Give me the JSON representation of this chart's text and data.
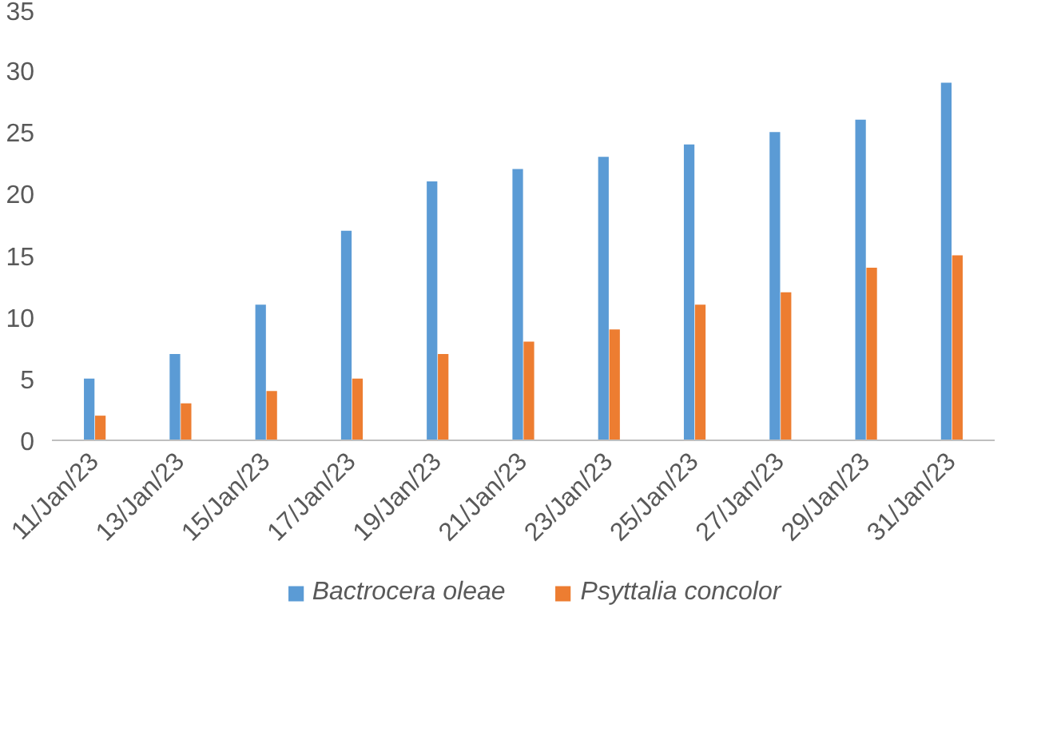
{
  "chart_data": {
    "type": "bar",
    "categories": [
      "11/Jan/23",
      "13/Jan/23",
      "15/Jan/23",
      "17/Jan/23",
      "19/Jan/23",
      "21/Jan/23",
      "23/Jan/23",
      "25/Jan/23",
      "27/Jan/23",
      "29/Jan/23",
      "31/Jan/23"
    ],
    "series": [
      {
        "name": "Bactrocera oleae",
        "color": "#5b9bd5",
        "values": [
          5,
          7,
          11,
          17,
          21,
          22,
          23,
          24,
          25,
          26,
          29
        ]
      },
      {
        "name": "Psyttalia concolor",
        "color": "#ed7d31",
        "values": [
          2,
          3,
          4,
          5,
          7,
          8,
          9,
          11,
          12,
          14,
          15
        ]
      }
    ],
    "ylim": [
      0,
      35
    ],
    "yticks": [
      0,
      5,
      10,
      15,
      20,
      25,
      30,
      35
    ],
    "grid": false,
    "legend": "bottom"
  }
}
